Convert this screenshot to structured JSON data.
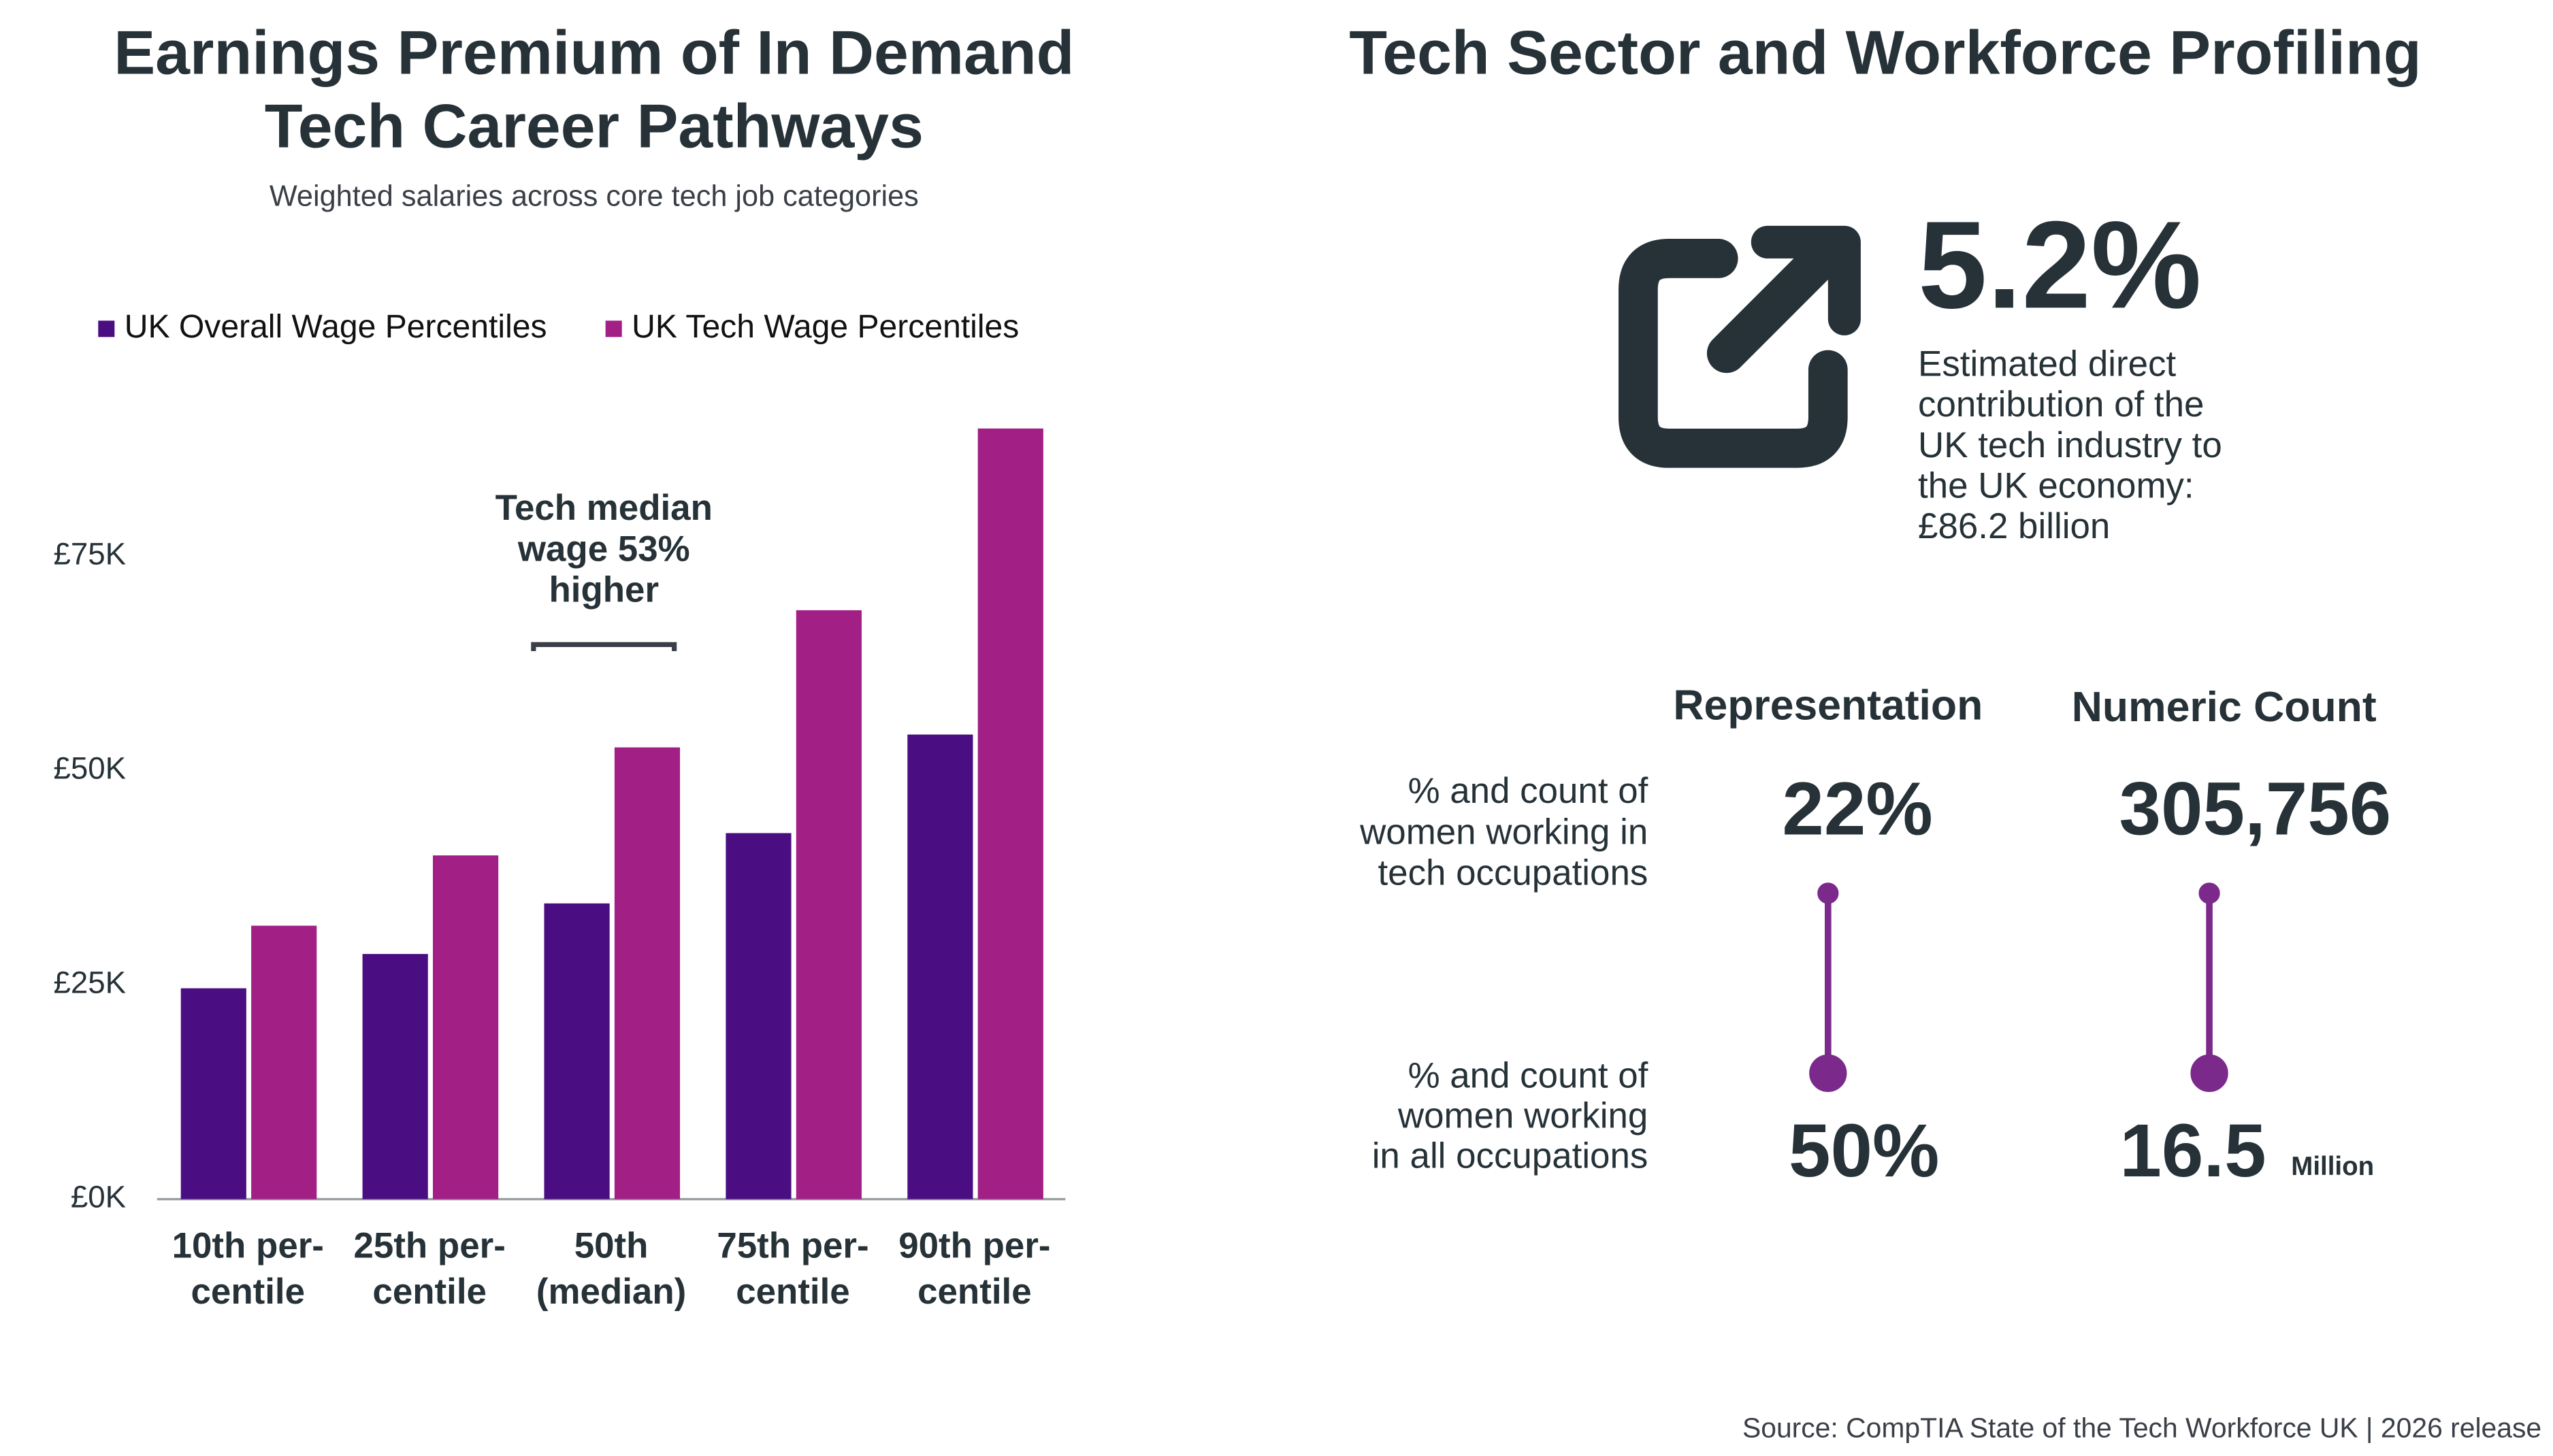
{
  "chart_data": {
    "type": "bar",
    "title": [
      "Earnings Premium of In Demand",
      "Tech Career Pathways"
    ],
    "subtitle": "Weighted salaries across core tech job categories",
    "categories": [
      [
        "10th per-",
        "centile"
      ],
      [
        "25th per-",
        "centile"
      ],
      [
        "50th",
        "(median)"
      ],
      [
        "75th per-",
        "centile"
      ],
      [
        "90th per-",
        "centile"
      ]
    ],
    "series": [
      {
        "name": "UK Overall Wage Percentiles",
        "color": "#4a0e82",
        "values": [
          24.6,
          28.6,
          34.5,
          42.7,
          54.2
        ]
      },
      {
        "name": "UK Tech Wage Percentiles",
        "color": "#a21f86",
        "values": [
          31.9,
          40.1,
          52.7,
          68.7,
          89.9
        ]
      }
    ],
    "ylim": [
      0,
      90
    ],
    "yticks": [
      {
        "value": 0,
        "label": "£0K"
      },
      {
        "value": 25,
        "label": "£25K"
      },
      {
        "value": 50,
        "label": "£50K"
      },
      {
        "value": 75,
        "label": "£75K"
      }
    ],
    "annotation": [
      "Tech median",
      "wage 53%",
      "higher"
    ],
    "legend": "top-left"
  },
  "profile": {
    "title": "Tech Sector and Workforce Profiling",
    "stat": "5.2%",
    "stat_description": [
      "Estimated direct",
      "contribution of the",
      "UK tech industry to",
      "the UK economy:",
      "£86.2 billion"
    ],
    "columns": [
      "Representation",
      "Numeric Count"
    ],
    "rows": [
      {
        "label": [
          "% and count of",
          "women working in",
          "tech occupations"
        ],
        "share": "22%",
        "count": "305,756"
      },
      {
        "label": [
          "% and count of",
          "women working",
          "in all occupations"
        ],
        "share": "50%",
        "count": "16.5",
        "count_unit": "Million"
      }
    ]
  },
  "source": "Source: CompTIA State of the Tech Workforce UK | 2026 release"
}
